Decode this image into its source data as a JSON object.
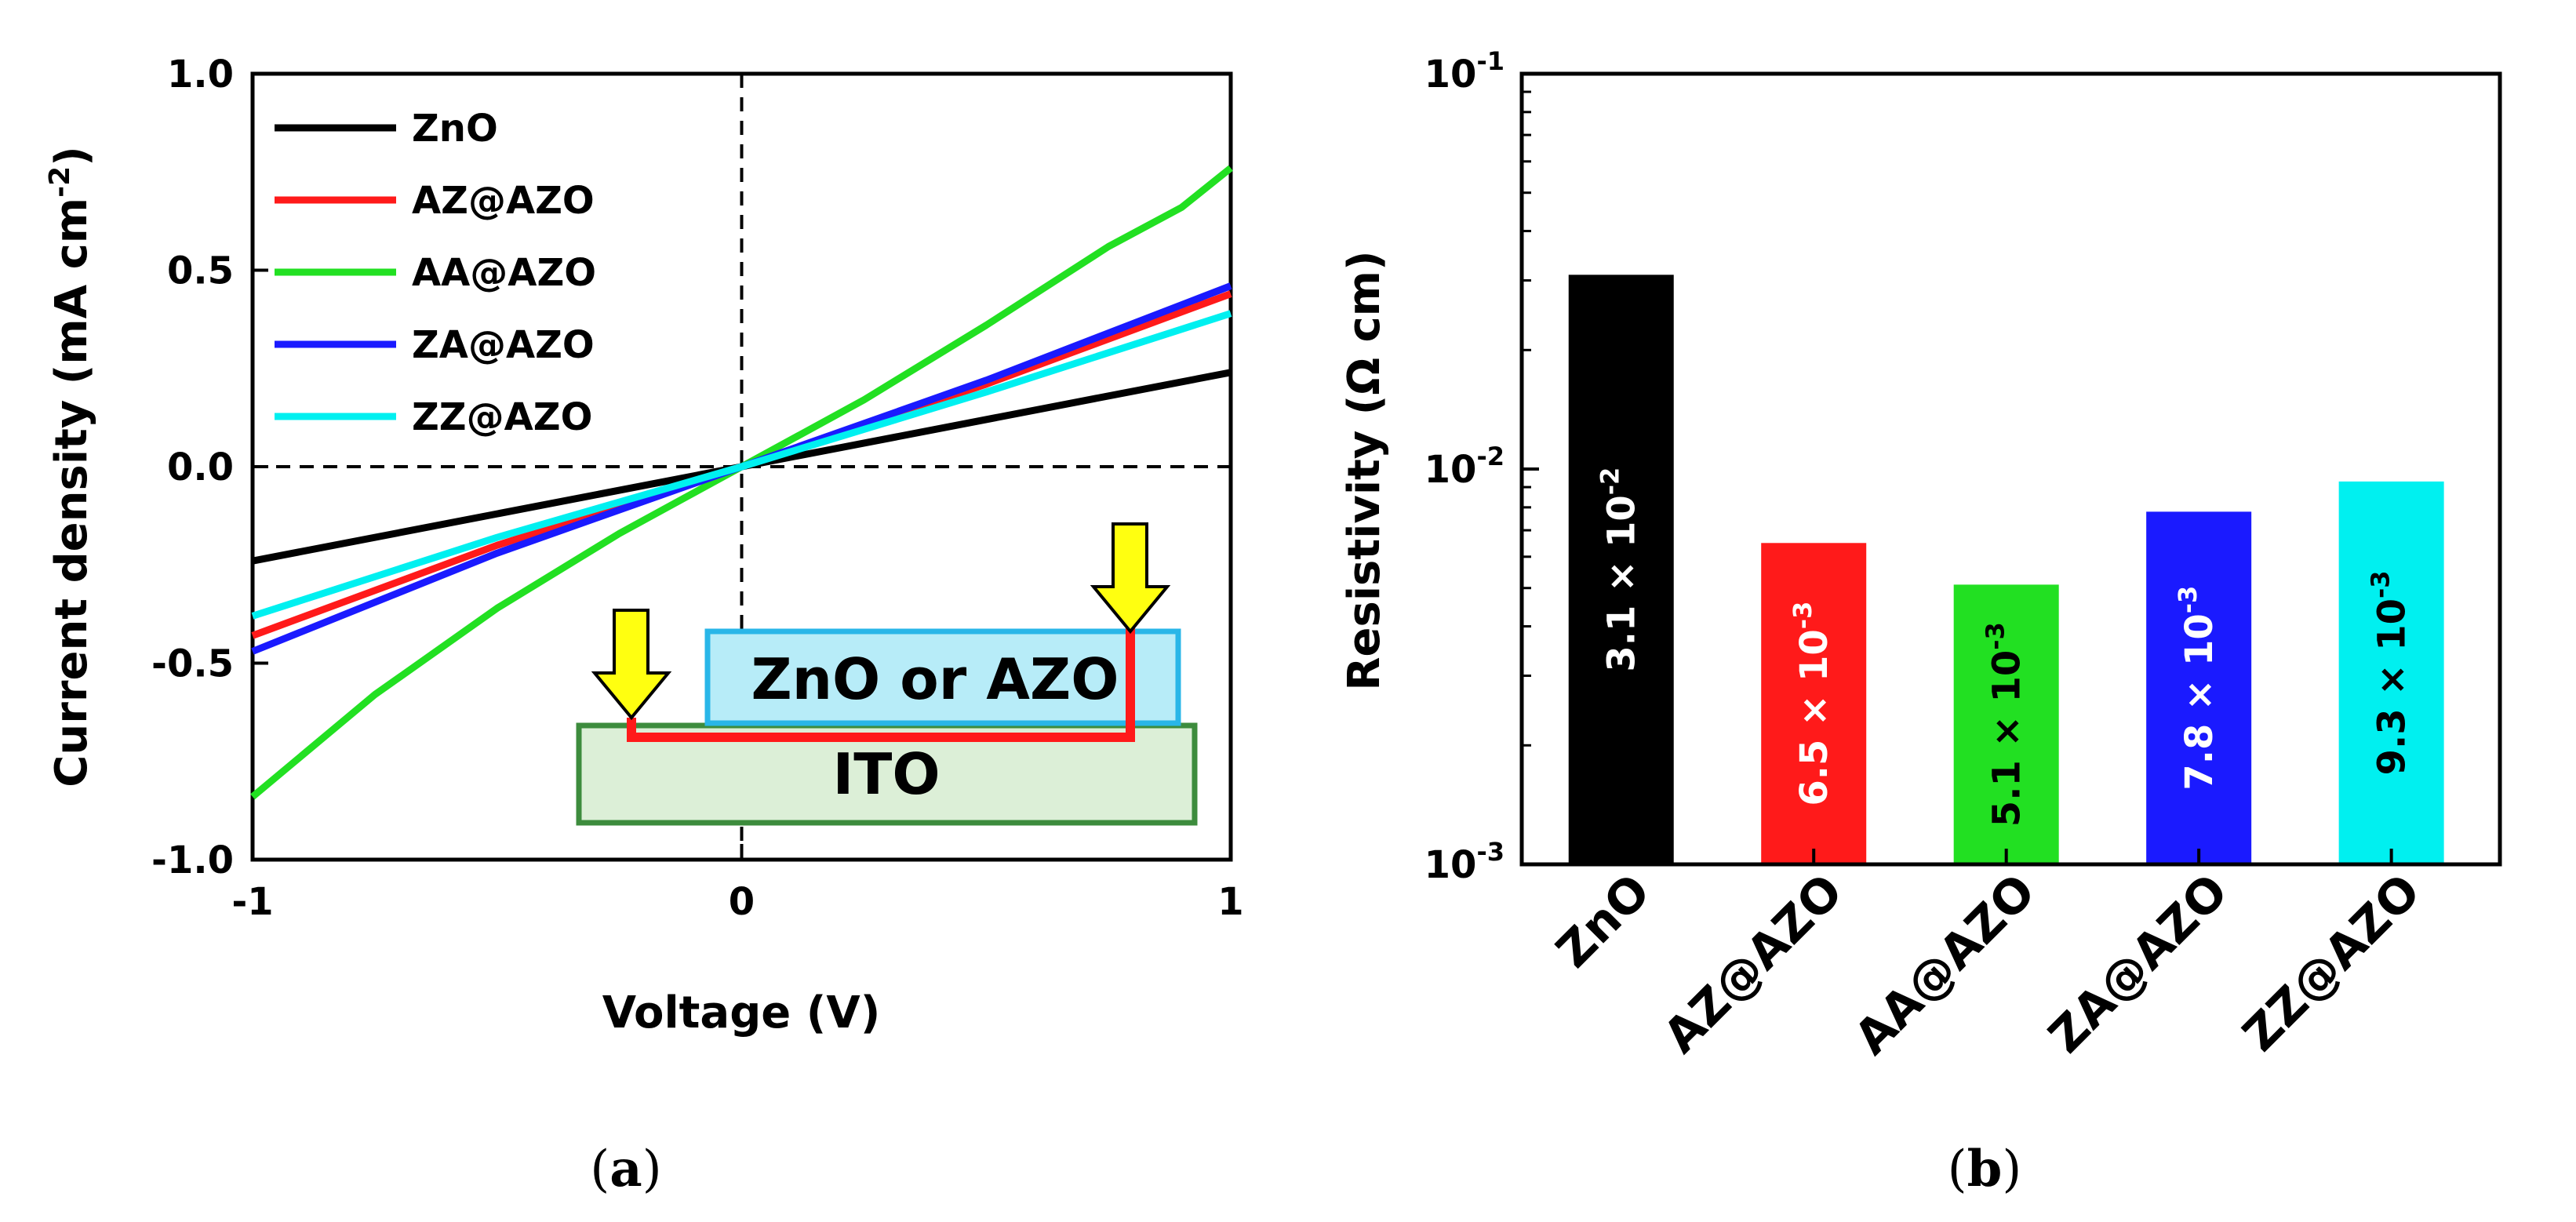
{
  "chart_data": [
    {
      "type": "line",
      "panel_label": "a",
      "xlabel": "Voltage (V)",
      "ylabel_main": "Current density (mA cm",
      "ylabel_sup": "-2",
      "ylabel_close": ")",
      "xlim": [
        -1,
        1
      ],
      "ylim": [
        -1.0,
        1.0
      ],
      "xticks": [
        -1,
        0,
        1
      ],
      "xtick_labels": [
        "-1",
        "0",
        "1"
      ],
      "yticks": [
        -1.0,
        -0.5,
        0.0,
        0.5,
        1.0
      ],
      "ytick_labels": [
        "-1.0",
        "-0.5",
        "0.0",
        "0.5",
        "1.0"
      ],
      "legend_position": "top-left",
      "series": [
        {
          "name": "ZnO",
          "color": "#000000",
          "x": [
            -1,
            1
          ],
          "y": [
            -0.24,
            0.24
          ]
        },
        {
          "name": "AZ@AZO",
          "color": "#ff1a1a",
          "x": [
            -1,
            -0.5,
            0,
            0.5,
            1
          ],
          "y": [
            -0.43,
            -0.2,
            0.0,
            0.21,
            0.44
          ]
        },
        {
          "name": "AA@AZO",
          "color": "#22e022",
          "x": [
            -1,
            -0.75,
            -0.5,
            -0.25,
            0,
            0.25,
            0.5,
            0.75,
            0.9,
            1
          ],
          "y": [
            -0.84,
            -0.58,
            -0.36,
            -0.17,
            0.0,
            0.17,
            0.36,
            0.56,
            0.66,
            0.76
          ]
        },
        {
          "name": "ZA@AZO",
          "color": "#1a1aff",
          "x": [
            -1,
            -0.5,
            0,
            0.5,
            1
          ],
          "y": [
            -0.47,
            -0.22,
            0.0,
            0.22,
            0.46
          ]
        },
        {
          "name": "ZZ@AZO",
          "color": "#00f0f0",
          "x": [
            -1,
            -0.5,
            0,
            0.5,
            1
          ],
          "y": [
            -0.38,
            -0.18,
            0.0,
            0.19,
            0.39
          ]
        }
      ],
      "inset": {
        "top_layer": "ZnO or AZO",
        "bottom_layer": "ITO",
        "top_fill": "#b7ecf8",
        "top_edge": "#29b6e8",
        "bottom_fill": "#dcefd7",
        "bottom_edge": "#3d8c3d",
        "probe_fill": "#ffff10",
        "wire_color": "#ff1a1a"
      }
    },
    {
      "type": "bar",
      "panel_label": "b",
      "ylabel": "Resistivity (Ω cm)",
      "yscale": "log",
      "ylim": [
        0.001,
        0.1
      ],
      "yticks": [
        0.001,
        0.01,
        0.1
      ],
      "ytick_base": "10",
      "ytick_exponents": [
        "-3",
        "-2",
        "-1"
      ],
      "categories": [
        "ZnO",
        "AZ@AZO",
        "AA@AZO",
        "ZA@AZO",
        "ZZ@AZO"
      ],
      "values": [
        0.031,
        0.0065,
        0.0051,
        0.0078,
        0.0093
      ],
      "colors": [
        "#000000",
        "#ff1a1a",
        "#22e022",
        "#1a1aff",
        "#00f0f0"
      ],
      "bar_label_mantissa": [
        "3.1 × 10",
        "6.5 × 10",
        "5.1 × 10",
        "7.8 × 10",
        "9.3 × 10"
      ],
      "bar_label_exponent": [
        "-2",
        "-3",
        "-3",
        "-3",
        "-3"
      ],
      "bar_label_colors": [
        "#ffffff",
        "#ffffff",
        "#000000",
        "#ffffff",
        "#000000"
      ]
    }
  ]
}
